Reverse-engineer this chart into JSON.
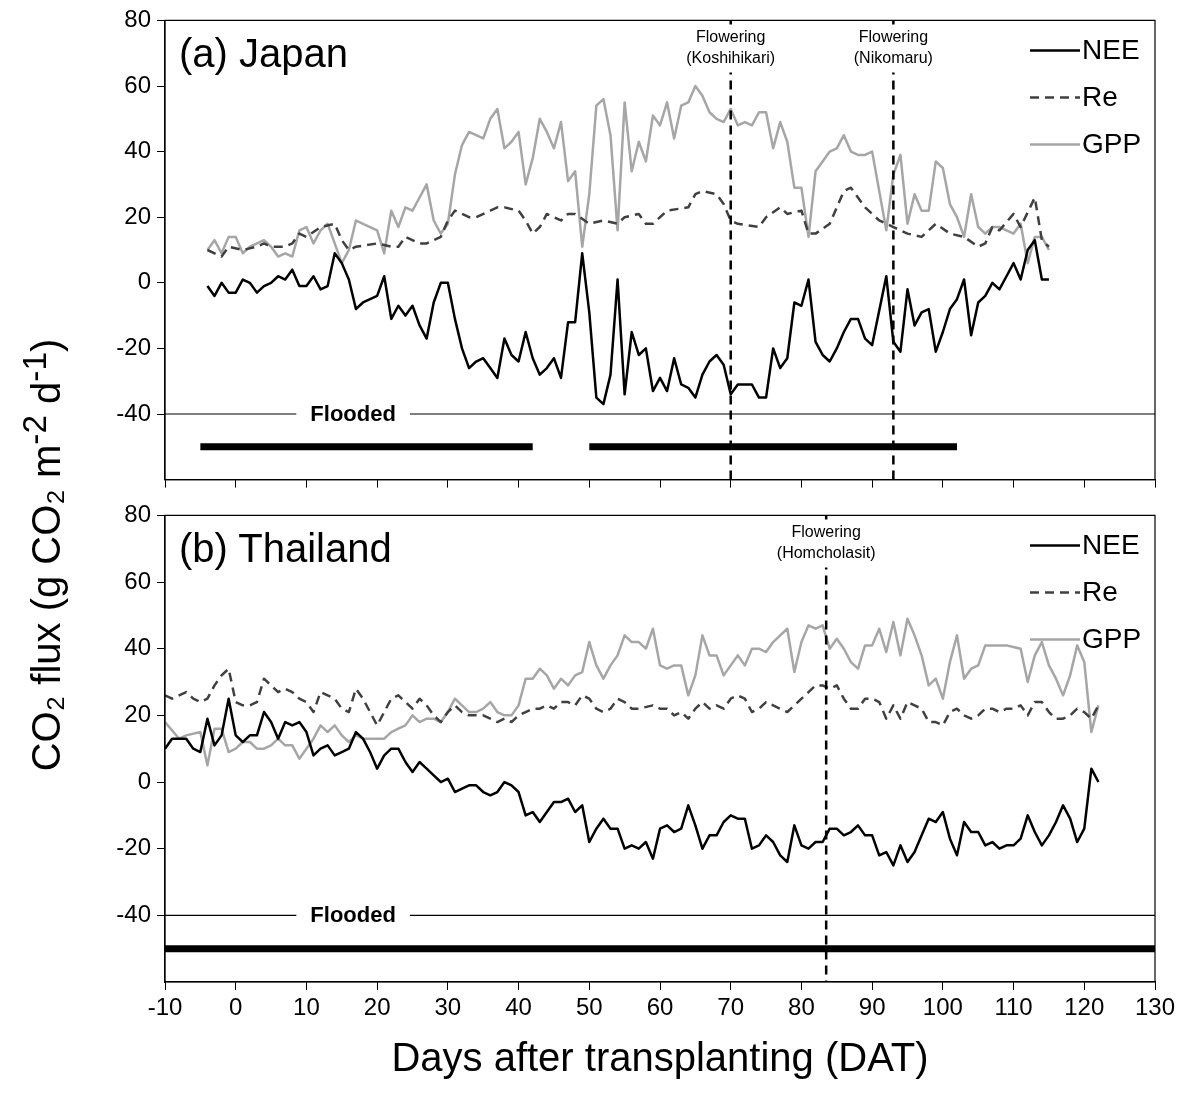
{
  "chart_data": [
    {
      "type": "line",
      "title": "(a) Japan",
      "ylabel": "CO₂ flux (g CO₂ m$^{-2}$ d$^{-1}$)",
      "xlim": [
        -10,
        130
      ],
      "xticks": [
        -10,
        0,
        10,
        20,
        30,
        40,
        50,
        60,
        70,
        80,
        90,
        100,
        110,
        120,
        130
      ],
      "ylim": [
        -60,
        80
      ],
      "yticks": [
        -40,
        -20,
        0,
        20,
        40,
        60,
        80
      ],
      "tick_labels": "y",
      "legend": "top right",
      "series": [
        {
          "name": "NEE",
          "color": "#000000",
          "line_style": "solid",
          "x": [
            -4,
            -3,
            -2,
            -1,
            0,
            1,
            2,
            3,
            4,
            5,
            6,
            7,
            8,
            9,
            10,
            11,
            12,
            13,
            14,
            15,
            16,
            17,
            18,
            19,
            20,
            21,
            22,
            23,
            24,
            25,
            26,
            27,
            28,
            29,
            30,
            31,
            32,
            33,
            34,
            35,
            36,
            37,
            38,
            39,
            40,
            41,
            42,
            43,
            44,
            45,
            46,
            47,
            48,
            49,
            50,
            51,
            52,
            53,
            54,
            55,
            56,
            57,
            58,
            59,
            60,
            61,
            62,
            63,
            64,
            65,
            66,
            67,
            68,
            69,
            70,
            71,
            72,
            73,
            74,
            75,
            76,
            77,
            78,
            79,
            80,
            81,
            82,
            83,
            84,
            85,
            86,
            87,
            88,
            89,
            90,
            92,
            93,
            94,
            95,
            96,
            97,
            98,
            99,
            100,
            101,
            102,
            103,
            104,
            105,
            106,
            107,
            108,
            109,
            110,
            111,
            112,
            113,
            114,
            115
          ],
          "values": [
            -1,
            -4,
            0,
            -3,
            -3,
            1,
            0,
            -3,
            -1,
            0,
            2,
            1,
            4,
            -1,
            -1,
            2,
            -2,
            -1,
            9,
            6,
            1,
            -8,
            -6,
            -5,
            -4,
            2,
            -11,
            -7,
            -10,
            -7,
            -13,
            -17,
            -6,
            0,
            0,
            -11,
            -20,
            -26,
            -24,
            -23,
            -26,
            -29,
            -17,
            -22,
            -24,
            -15,
            -23,
            -28,
            -26,
            -23,
            -29,
            -12,
            -12,
            9,
            -9,
            -35,
            -37,
            -28,
            1,
            -34,
            -15,
            -22,
            -20,
            -33,
            -29,
            -33,
            -23,
            -31,
            -32,
            -35,
            -28,
            -24,
            -22,
            -25,
            -34,
            -31,
            -31,
            -31,
            -35,
            -35,
            -20,
            -26,
            -23,
            -6,
            -7,
            1,
            -18,
            -22,
            -24,
            -20,
            -15,
            -11,
            -11,
            -17,
            -19,
            2,
            -18,
            -21,
            -2,
            -13,
            -9,
            -8,
            -21,
            -15,
            -8,
            -5,
            1,
            -16,
            -6,
            -4,
            0,
            -2,
            2,
            6,
            1,
            10,
            13,
            1,
            1
          ]
        },
        {
          "name": "Re",
          "color": "#404040",
          "line_style": "dashed",
          "x": [
            -4,
            -2,
            -1,
            1,
            3,
            4,
            5,
            7,
            8,
            9,
            10,
            12,
            14,
            15,
            16,
            17,
            20,
            22,
            23,
            24,
            26,
            27,
            29,
            30,
            31,
            32,
            33,
            34,
            36,
            37,
            38,
            40,
            41,
            42,
            43,
            44,
            45,
            46,
            47,
            48,
            50,
            52,
            54,
            55,
            57,
            58,
            59,
            61,
            64,
            65,
            66,
            68,
            69,
            70,
            71,
            74,
            75,
            77,
            78,
            80,
            81,
            82,
            84,
            86,
            87,
            89,
            91,
            93,
            95,
            97,
            99,
            101,
            103,
            105,
            106,
            107,
            108,
            110,
            111,
            113,
            114,
            115
          ],
          "values": [
            10,
            8,
            11,
            10,
            11,
            12,
            11,
            11,
            12,
            15,
            14,
            17,
            18,
            13,
            10,
            11,
            12,
            11,
            11,
            14,
            12,
            12,
            14,
            19,
            22,
            21,
            20,
            20,
            22,
            23,
            23,
            22,
            19,
            15,
            17,
            21,
            20,
            19,
            21,
            21,
            18,
            19,
            18,
            20,
            21,
            18,
            18,
            22,
            23,
            27,
            28,
            27,
            24,
            19,
            18,
            17,
            20,
            23,
            21,
            22,
            15,
            15,
            18,
            28,
            29,
            23,
            19,
            17,
            15,
            14,
            18,
            15,
            14,
            11,
            12,
            17,
            16,
            21,
            17,
            26,
            13,
            11
          ]
        },
        {
          "name": "GPP",
          "color": "#a6a6a6",
          "line_style": "solid",
          "x": [
            -4,
            -3,
            -2,
            -1,
            0,
            1,
            2,
            3,
            4,
            5,
            6,
            7,
            8,
            9,
            10,
            11,
            12,
            13,
            14,
            15,
            16,
            17,
            18,
            19,
            20,
            21,
            22,
            23,
            24,
            25,
            26,
            27,
            28,
            29,
            30,
            31,
            32,
            33,
            34,
            35,
            36,
            37,
            38,
            39,
            40,
            41,
            42,
            43,
            44,
            45,
            46,
            47,
            48,
            49,
            50,
            51,
            52,
            53,
            54,
            55,
            56,
            57,
            58,
            59,
            60,
            61,
            62,
            63,
            64,
            65,
            66,
            67,
            68,
            69,
            70,
            71,
            72,
            73,
            74,
            75,
            76,
            77,
            78,
            79,
            80,
            81,
            82,
            83,
            84,
            85,
            86,
            87,
            88,
            89,
            90,
            92,
            93,
            94,
            95,
            96,
            97,
            98,
            99,
            100,
            101,
            102,
            103,
            104,
            105,
            106,
            107,
            108,
            110,
            111,
            112,
            113,
            114,
            115
          ],
          "values": [
            10,
            13,
            9,
            14,
            14,
            9,
            11,
            12,
            13,
            11,
            8,
            9,
            8,
            16,
            17,
            12,
            16,
            18,
            12,
            6,
            10,
            19,
            18,
            17,
            16,
            9,
            22,
            17,
            23,
            22,
            26,
            30,
            19,
            15,
            18,
            33,
            42,
            46,
            45,
            44,
            50,
            53,
            41,
            43,
            46,
            30,
            38,
            50,
            46,
            41,
            49,
            31,
            34,
            11,
            27,
            54,
            56,
            45,
            16,
            55,
            34,
            43,
            37,
            51,
            48,
            55,
            44,
            54,
            55,
            60,
            57,
            52,
            50,
            49,
            53,
            48,
            49,
            48,
            52,
            52,
            41,
            49,
            43,
            29,
            29,
            14,
            34,
            37,
            40,
            41,
            45,
            40,
            39,
            39,
            40,
            16,
            33,
            39,
            18,
            27,
            22,
            22,
            37,
            35,
            24,
            20,
            14,
            27,
            17,
            15,
            17,
            17,
            15,
            18,
            6,
            14,
            14,
            10
          ]
        },
        {
          "color": "#000000",
          "x": [
            -5,
            42,
            46,
            50,
            102
          ],
          "values": [
            -50,
            -50,
            null,
            -50,
            -50
          ]
        }
      ],
      "ref_lines": [
        {
          "axis": "y",
          "value": -40,
          "label": "Flooded"
        },
        {
          "axis": "x",
          "value": 70,
          "label": "Flowering\n(Koshihikari)",
          "line_style": "dashed"
        },
        {
          "axis": "x",
          "value": 93,
          "label": "Flowering\n(Nikomaru)",
          "line_style": "dashed"
        }
      ]
    },
    {
      "type": "line",
      "title": "(b) Thailand",
      "xlabel": "Days after transplanting (DAT)",
      "xlim": [
        -10,
        130
      ],
      "xticks": [
        -10,
        0,
        10,
        20,
        30,
        40,
        50,
        60,
        70,
        80,
        90,
        100,
        110,
        120,
        130
      ],
      "ylim": [
        -60,
        80
      ],
      "yticks": [
        -40,
        -20,
        0,
        20,
        40,
        60,
        80
      ],
      "legend": "top right",
      "series": [
        {
          "name": "NEE",
          "color": "#000000",
          "line_style": "solid",
          "x": [
            -10,
            -9,
            -7,
            -6,
            -5,
            -4,
            -3,
            -2,
            -1,
            0,
            1,
            2,
            3,
            4,
            5,
            6,
            7,
            8,
            9,
            10,
            11,
            12,
            13,
            14,
            15,
            16,
            17,
            18,
            19,
            20,
            21,
            22,
            23,
            24,
            25,
            26,
            27,
            28,
            29,
            30,
            31,
            32,
            33,
            34,
            35,
            36,
            37,
            38,
            39,
            40,
            41,
            42,
            43,
            44,
            45,
            46,
            47,
            48,
            49,
            50,
            51,
            52,
            53,
            54,
            55,
            56,
            57,
            58,
            59,
            60,
            61,
            62,
            63,
            64,
            65,
            66,
            67,
            68,
            69,
            70,
            71,
            72,
            73,
            74,
            75,
            76,
            77,
            78,
            79,
            80,
            81,
            82,
            83,
            84,
            85,
            86,
            87,
            88,
            89,
            90,
            91,
            92,
            93,
            94,
            95,
            96,
            97,
            98,
            99,
            100,
            101,
            102,
            103,
            104,
            105,
            106,
            107,
            108,
            109,
            110,
            111,
            112,
            113,
            114,
            115,
            116,
            117,
            118,
            119,
            120,
            121,
            122
          ],
          "values": [
            10,
            13,
            13,
            10,
            9,
            19,
            11,
            14,
            25,
            14,
            12,
            14,
            14,
            21,
            18,
            13,
            18,
            17,
            18,
            15,
            8,
            10,
            11,
            8,
            9,
            10,
            15,
            13,
            9,
            4,
            8,
            10,
            10,
            6,
            3,
            6,
            4,
            2,
            0,
            1,
            -3,
            -2,
            -1,
            -1,
            -3,
            -4,
            -3,
            0,
            -1,
            -3,
            -10,
            -9,
            -12,
            -9,
            -6,
            -6,
            -5,
            -9,
            -7,
            -18,
            -14,
            -11,
            -14,
            -14,
            -20,
            -19,
            -20,
            -18,
            -23,
            -14,
            -13,
            -15,
            -14,
            -7,
            -13,
            -20,
            -16,
            -16,
            -12,
            -10,
            -11,
            -11,
            -20,
            -19,
            -16,
            -18,
            -22,
            -24,
            -13,
            -19,
            -20,
            -18,
            -18,
            -14,
            -14,
            -16,
            -15,
            -13,
            -16,
            -16,
            -22,
            -21,
            -25,
            -19,
            -24,
            -21,
            -16,
            -11,
            -12,
            -9,
            -17,
            -22,
            -12,
            -15,
            -15,
            -19,
            -18,
            -20,
            -19,
            -19,
            -17,
            -10,
            -15,
            -19,
            -16,
            -12,
            -7,
            -11,
            -18,
            -14,
            4,
            0
          ]
        },
        {
          "name": "Re",
          "color": "#404040",
          "line_style": "dashed",
          "x": [
            -10,
            -9,
            -7,
            -6,
            -5,
            -4,
            -3,
            -2,
            -1,
            0,
            1,
            2,
            3,
            4,
            5,
            6,
            7,
            8,
            9,
            10,
            11,
            12,
            13,
            14,
            15,
            16,
            17,
            18,
            19,
            20,
            21,
            22,
            23,
            24,
            25,
            26,
            27,
            28,
            29,
            30,
            31,
            32,
            33,
            34,
            35,
            36,
            37,
            38,
            39,
            40,
            41,
            42,
            43,
            44,
            45,
            46,
            47,
            48,
            49,
            50,
            51,
            52,
            53,
            54,
            55,
            56,
            57,
            59,
            60,
            61,
            62,
            63,
            64,
            65,
            66,
            67,
            68,
            69,
            70,
            71,
            72,
            73,
            74,
            75,
            76,
            77,
            78,
            79,
            81,
            82,
            83,
            84,
            85,
            86,
            87,
            88,
            89,
            90,
            91,
            92,
            93,
            94,
            95,
            96,
            97,
            98,
            99,
            100,
            101,
            102,
            103,
            104,
            105,
            106,
            107,
            108,
            109,
            110,
            111,
            112,
            113,
            114,
            115,
            116,
            117,
            118,
            119,
            120,
            121,
            122
          ],
          "values": [
            26,
            25,
            27,
            25,
            24,
            25,
            29,
            32,
            34,
            24,
            23,
            23,
            24,
            31,
            29,
            27,
            28,
            27,
            25,
            24,
            21,
            27,
            26,
            25,
            22,
            21,
            28,
            25,
            21,
            17,
            21,
            25,
            26,
            24,
            22,
            25,
            23,
            20,
            18,
            21,
            23,
            21,
            20,
            20,
            20,
            19,
            18,
            19,
            18,
            20,
            21,
            22,
            22,
            23,
            22,
            24,
            24,
            23,
            26,
            25,
            22,
            21,
            22,
            25,
            24,
            22,
            22,
            23,
            22,
            22,
            20,
            21,
            19,
            22,
            24,
            22,
            23,
            22,
            25,
            26,
            25,
            21,
            22,
            24,
            23,
            22,
            21,
            23,
            27,
            29,
            29,
            28,
            29,
            25,
            22,
            22,
            25,
            25,
            24,
            19,
            23,
            19,
            24,
            23,
            22,
            18,
            18,
            17,
            21,
            22,
            20,
            19,
            20,
            22,
            22,
            21,
            22,
            22,
            23,
            20,
            24,
            24,
            21,
            19,
            19,
            20,
            22,
            21,
            19,
            23
          ]
        },
        {
          "name": "GPP",
          "color": "#a6a6a6",
          "line_style": "solid",
          "x": [
            -10,
            -8,
            -7,
            -5,
            -4,
            -3,
            -2,
            -1,
            0,
            1,
            2,
            3,
            4,
            5,
            6,
            7,
            8,
            9,
            10,
            11,
            12,
            13,
            14,
            15,
            16,
            17,
            18,
            19,
            20,
            21,
            22,
            23,
            24,
            25,
            26,
            27,
            28,
            29,
            30,
            31,
            32,
            33,
            34,
            35,
            36,
            37,
            38,
            39,
            40,
            41,
            42,
            43,
            44,
            45,
            46,
            47,
            48,
            49,
            50,
            51,
            52,
            53,
            54,
            55,
            56,
            57,
            58,
            59,
            60,
            61,
            62,
            63,
            64,
            65,
            66,
            67,
            68,
            69,
            70,
            71,
            72,
            73,
            74,
            75,
            76,
            77,
            78,
            79,
            80,
            81,
            82,
            83,
            84,
            85,
            86,
            87,
            88,
            89,
            90,
            91,
            92,
            93,
            94,
            95,
            96,
            97,
            98,
            99,
            100,
            101,
            102,
            103,
            104,
            105,
            106,
            107,
            109,
            111,
            112,
            113,
            114,
            115,
            116,
            117,
            118,
            119,
            120,
            121,
            122
          ],
          "values": [
            18,
            13,
            14,
            15,
            5,
            16,
            16,
            9,
            10,
            12,
            12,
            10,
            10,
            11,
            13,
            11,
            11,
            7,
            10,
            13,
            17,
            15,
            17,
            14,
            12,
            14,
            13,
            13,
            13,
            13,
            15,
            16,
            17,
            20,
            18,
            19,
            19,
            18,
            21,
            25,
            23,
            21,
            21,
            22,
            24,
            21,
            20,
            20,
            23,
            31,
            31,
            34,
            32,
            28,
            31,
            29,
            32,
            33,
            42,
            35,
            31,
            35,
            38,
            44,
            42,
            42,
            40,
            46,
            35,
            34,
            35,
            35,
            26,
            32,
            44,
            38,
            38,
            32,
            35,
            38,
            35,
            40,
            40,
            39,
            42,
            44,
            46,
            33,
            42,
            47,
            46,
            47,
            40,
            43,
            40,
            36,
            34,
            41,
            41,
            46,
            39,
            48,
            38,
            49,
            44,
            38,
            29,
            31,
            25,
            36,
            44,
            31,
            34,
            35,
            41,
            41,
            41,
            40,
            30,
            38,
            42,
            35,
            31,
            26,
            32,
            41,
            36,
            15,
            23
          ]
        },
        {
          "color": "#000000",
          "x": [
            -10,
            130
          ],
          "values": [
            -50,
            -50
          ]
        }
      ],
      "ref_lines": [
        {
          "axis": "y",
          "value": -40,
          "label": "Flooded"
        },
        {
          "axis": "x",
          "value": 83.5,
          "label": "Flowering\n(Homcholasit)",
          "line_style": "dashed"
        }
      ]
    }
  ]
}
